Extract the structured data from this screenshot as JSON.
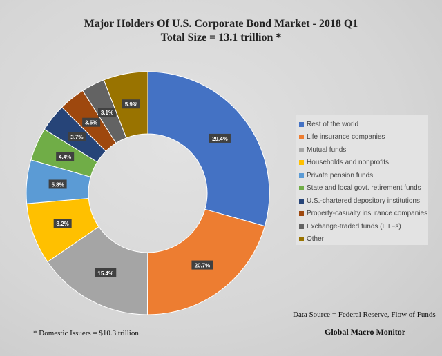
{
  "chart_data": {
    "type": "pie",
    "donut": true,
    "title": "Major Holders Of U.S. Corporate Bond Market - 2018 Q1",
    "subtitle": "Total Size = 13.1 trillion *",
    "legend_position": "right",
    "categories": [
      "Rest of the world",
      "Life insurance companies",
      "Mutual funds",
      "Households and nonprofits",
      "Private pension funds",
      "State and local govt. retirement funds",
      "U.S.-chartered depository institutions",
      "Property-casualty insurance companies",
      "Exchange-traded funds (ETFs)",
      "Other"
    ],
    "values": [
      29.4,
      20.7,
      15.4,
      8.2,
      5.8,
      4.4,
      3.7,
      3.5,
      3.1,
      5.9
    ],
    "data_labels": [
      "29.4%",
      "20.7%",
      "15.4%",
      "8.2%",
      "5.8%",
      "4.4%",
      "3.7%",
      "3.5%",
      "3.1%",
      "5.9%"
    ],
    "colors": [
      "#4472c4",
      "#ed7d31",
      "#a5a5a5",
      "#ffc000",
      "#5b9bd5",
      "#70ad47",
      "#264478",
      "#9e480e",
      "#636363",
      "#997300"
    ]
  },
  "notes": {
    "source": "Data Source = Federal Reserve, Flow of Funds",
    "footnote": "* Domestic  Issuers = $10.3 trillion",
    "brand": "Global Macro Monitor"
  }
}
